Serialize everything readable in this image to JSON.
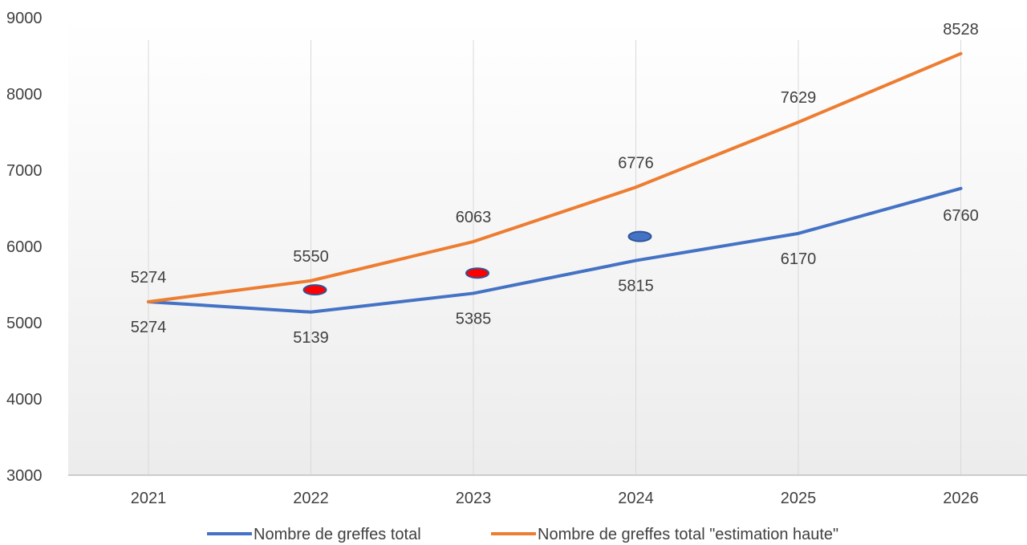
{
  "chart_data": {
    "type": "line",
    "categories": [
      "2021",
      "2022",
      "2023",
      "2024",
      "2025",
      "2026"
    ],
    "ylim": [
      3000,
      9000
    ],
    "yticks": [
      "3000",
      "4000",
      "5000",
      "6000",
      "7000",
      "8000",
      "9000"
    ],
    "series": [
      {
        "name": "Nombre de greffes total",
        "color": "#4472C4",
        "values": [
          5274,
          5139,
          5385,
          5815,
          6170,
          6760
        ],
        "labels": [
          "5274",
          "5139",
          "5385",
          "5815",
          "6170",
          "6760"
        ]
      },
      {
        "name": "Nombre de greffes total \"estimation haute\"",
        "color": "#ED7D31",
        "values": [
          5274,
          5550,
          6063,
          6776,
          7629,
          8528
        ],
        "labels": [
          "5274",
          "5550",
          "6063",
          "6776",
          "7629",
          "8528"
        ]
      }
    ],
    "markers": [
      {
        "category": "2022",
        "value": 5430,
        "fill": "#FF0000",
        "stroke": "#2F5597"
      },
      {
        "category": "2023",
        "value": 5650,
        "fill": "#FF0000",
        "stroke": "#2F5597"
      },
      {
        "category": "2024",
        "value": 6130,
        "fill": "#4472C4",
        "stroke": "#2F5597"
      }
    ],
    "grid": "vertical",
    "legend": "bottom"
  }
}
